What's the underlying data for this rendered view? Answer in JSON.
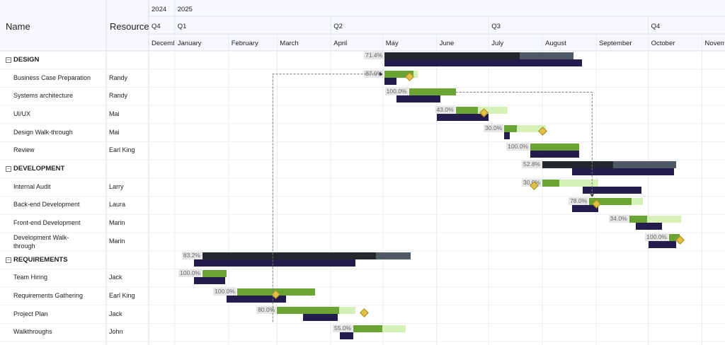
{
  "columns": {
    "name": "Name",
    "resource": "Resource"
  },
  "timeline": {
    "years": [
      {
        "label": "2024",
        "start": "2024-12-01"
      },
      {
        "label": "2025",
        "start": "2025-01-01"
      }
    ],
    "quarters": [
      {
        "label": "Q4",
        "start": "2024-12-01"
      },
      {
        "label": "Q1",
        "start": "2025-01-01"
      },
      {
        "label": "Q2",
        "start": "2025-04-01"
      },
      {
        "label": "Q3",
        "start": "2025-07-01"
      },
      {
        "label": "Q4",
        "start": "2025-10-01"
      }
    ],
    "months": [
      {
        "label": "December",
        "start": "2024-12-01"
      },
      {
        "label": "January",
        "start": "2025-01-01"
      },
      {
        "label": "February",
        "start": "2025-02-01"
      },
      {
        "label": "March",
        "start": "2025-03-01"
      },
      {
        "label": "April",
        "start": "2025-04-01"
      },
      {
        "label": "May",
        "start": "2025-05-01"
      },
      {
        "label": "June",
        "start": "2025-06-01"
      },
      {
        "label": "July",
        "start": "2025-07-01"
      },
      {
        "label": "August",
        "start": "2025-08-01"
      },
      {
        "label": "September",
        "start": "2025-09-01"
      },
      {
        "label": "October",
        "start": "2025-10-01"
      },
      {
        "label": "November",
        "start": "2025-11-01"
      }
    ]
  },
  "rows": [
    {
      "name": "DESIGN",
      "resource": "",
      "group": true,
      "progress": 71.4,
      "start": "2025-05-02",
      "end": "2025-08-19",
      "baseline_start": "2025-05-02",
      "baseline_end": "2025-08-24"
    },
    {
      "name": "Business Case Preparation",
      "resource": "Randy",
      "progress": 87.0,
      "start": "2025-05-02",
      "end": "2025-05-21",
      "baseline_start": "2025-05-02",
      "baseline_end": "2025-05-09",
      "milestone": "2025-05-16"
    },
    {
      "name": "Systems architecture",
      "resource": "Randy",
      "progress": 100.0,
      "start": "2025-05-16",
      "end": "2025-06-12",
      "baseline_start": "2025-05-09",
      "baseline_end": "2025-06-03"
    },
    {
      "name": "UI/UX",
      "resource": "Mai",
      "progress": 43.0,
      "start": "2025-06-12",
      "end": "2025-07-12",
      "baseline_start": "2025-06-01",
      "baseline_end": "2025-07-01",
      "milestone": "2025-06-28"
    },
    {
      "name": "Design Walk-through",
      "resource": "Mai",
      "progress": 30.0,
      "start": "2025-07-10",
      "end": "2025-08-03",
      "baseline_start": "2025-07-10",
      "baseline_end": "2025-07-13",
      "milestone": "2025-08-01"
    },
    {
      "name": "Review",
      "resource": "Earl King",
      "progress": 100.0,
      "start": "2025-07-25",
      "end": "2025-08-22",
      "baseline_start": "2025-07-25",
      "baseline_end": "2025-08-22"
    },
    {
      "name": "DEVELOPMENT",
      "resource": "",
      "group": true,
      "progress": 52.8,
      "start": "2025-08-01",
      "end": "2025-10-17",
      "baseline_start": "2025-08-18",
      "baseline_end": "2025-10-16"
    },
    {
      "name": "Internal Audit",
      "resource": "Larry",
      "progress": 30.0,
      "start": "2025-08-01",
      "end": "2025-09-02",
      "baseline_start": "2025-08-24",
      "baseline_end": "2025-09-27",
      "milestone": "2025-07-27"
    },
    {
      "name": "Back-end Development",
      "resource": "Laura",
      "progress": 78.0,
      "start": "2025-08-28",
      "end": "2025-09-28",
      "baseline_start": "2025-08-18",
      "baseline_end": "2025-09-02",
      "milestone": "2025-09-01"
    },
    {
      "name": "Front-end Development",
      "resource": "Marin",
      "progress": 34.0,
      "start": "2025-09-20",
      "end": "2025-10-20",
      "baseline_start": "2025-09-24",
      "baseline_end": "2025-10-09"
    },
    {
      "name": "Development Walk-through",
      "resource": "Marin",
      "progress": 100.0,
      "start": "2025-10-13",
      "end": "2025-10-19",
      "baseline_start": "2025-10-01",
      "baseline_end": "2025-10-17",
      "milestone": "2025-10-19"
    },
    {
      "name": "REQUIREMENTS",
      "resource": "",
      "group": true,
      "progress": 83.2,
      "start": "2025-01-17",
      "end": "2025-05-17",
      "baseline_start": "2025-01-12",
      "baseline_end": "2025-04-15"
    },
    {
      "name": "Team Hiring",
      "resource": "Jack",
      "progress": 100.0,
      "start": "2025-01-17",
      "end": "2025-01-31",
      "baseline_start": "2025-01-12",
      "baseline_end": "2025-01-30"
    },
    {
      "name": "Requirements Gathering",
      "resource": "Earl King",
      "progress": 100.0,
      "start": "2025-02-06",
      "end": "2025-03-23",
      "baseline_start": "2025-01-31",
      "baseline_end": "2025-03-06",
      "milestone": "2025-02-28"
    },
    {
      "name": "Project Plan",
      "resource": "Jack",
      "progress": 80.0,
      "start": "2025-03-01",
      "end": "2025-04-15",
      "baseline_start": "2025-03-16",
      "baseline_end": "2025-04-05",
      "milestone": "2025-04-20"
    },
    {
      "name": "Walkthroughs",
      "resource": "John",
      "progress": 55.0,
      "start": "2025-04-14",
      "end": "2025-05-14",
      "baseline_start": "2025-04-06",
      "baseline_end": "2025-04-14"
    }
  ],
  "dependencies": [
    {
      "from": "Project Plan",
      "to": "Business Case Preparation"
    },
    {
      "from": "Systems architecture",
      "to": "Back-end Development"
    }
  ],
  "colors": {
    "summary_done": "#23272e",
    "summary_rest": "#4d5a66",
    "task_done": "#6aa533",
    "task_rest": "#d6f1b8",
    "baseline": "#241c4d",
    "milestone": "#e2c044"
  }
}
